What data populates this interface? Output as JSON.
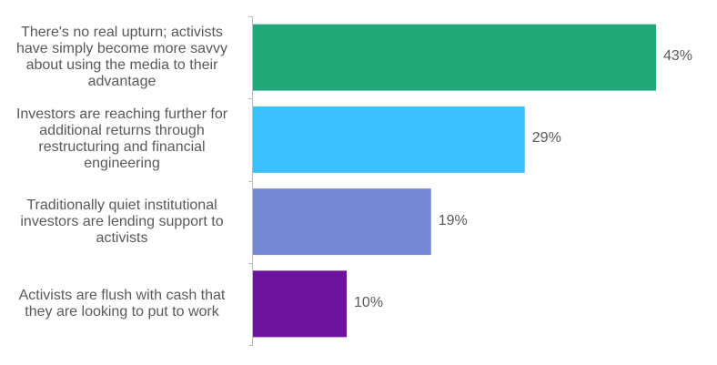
{
  "chart_data": {
    "type": "bar",
    "orientation": "horizontal",
    "categories": [
      "There's no real upturn; activists\nhave simply become more savvy\nabout using the media to their\nadvantage",
      "Investors are reaching further for\nadditional returns through\nrestructuring and financial\nengineering",
      "Traditionally quiet institutional\ninvestors are lending support to\nactivists",
      "Activists are flush with cash that\nthey are looking to put to work"
    ],
    "values": [
      43,
      29,
      19,
      10
    ],
    "value_labels": [
      "43%",
      "29%",
      "19%",
      "10%"
    ],
    "colors": [
      "#23a87a",
      "#3cbffd",
      "#7589d6",
      "#6e139e"
    ],
    "title": "",
    "xlabel": "",
    "ylabel": "",
    "xlim": [
      0,
      50
    ],
    "grid": false,
    "legend": "none"
  }
}
